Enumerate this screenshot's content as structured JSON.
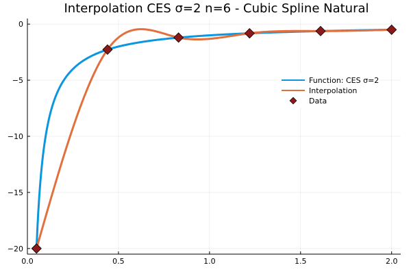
{
  "chart_data": {
    "type": "line",
    "title": "Interpolation CES σ=2 n=6 - Cubic Spline Natural",
    "xlim": [
      0,
      2.05
    ],
    "ylim": [
      -20.5,
      0.5
    ],
    "xticks": [
      0.0,
      0.5,
      1.0,
      1.5,
      2.0
    ],
    "xtick_labels": [
      "0.0",
      "0.5",
      "1.0",
      "1.5",
      "2.0"
    ],
    "yticks": [
      0,
      -5,
      -10,
      -15,
      -20
    ],
    "ytick_labels": [
      "0",
      "−5",
      "−10",
      "−15",
      "−20"
    ],
    "grid": true,
    "legend_position": "right",
    "series": [
      {
        "name": "Function: CES σ=2",
        "color": "#0b96df",
        "kind": "line",
        "formula": "-1/x",
        "x_range": [
          0.05,
          2.0
        ]
      },
      {
        "name": "Interpolation",
        "color": "#e2703e",
        "kind": "line",
        "method": "natural cubic spline through data"
      },
      {
        "name": "Data",
        "color": "#8b1a1a",
        "kind": "scatter",
        "marker": "diamond",
        "x": [
          0.05,
          0.44,
          0.83,
          1.22,
          1.61,
          2.0
        ],
        "y": [
          -20.0,
          -2.27,
          -1.2,
          -0.82,
          -0.62,
          -0.5
        ]
      }
    ]
  }
}
